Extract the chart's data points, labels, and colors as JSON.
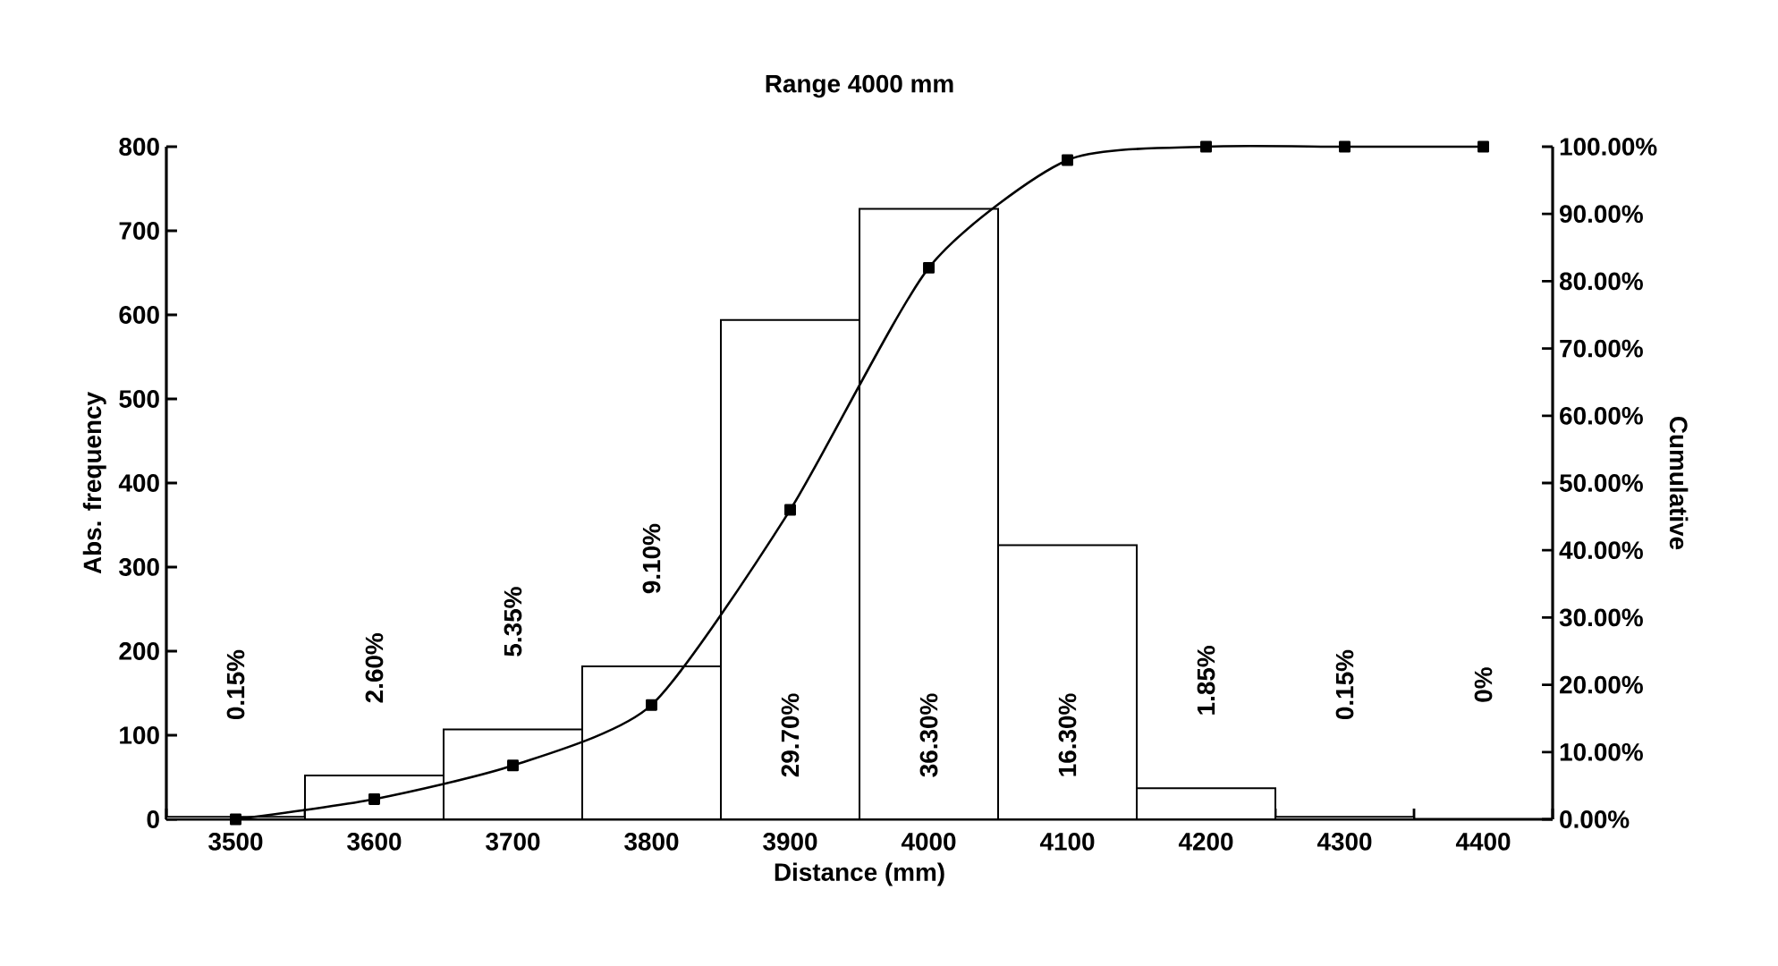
{
  "chart_data": {
    "type": "bar",
    "title": "Range 4000 mm",
    "xlabel": "Distance (mm)",
    "ylabel": "Abs. frequency",
    "y2label": "Cumulative",
    "categories": [
      "3500",
      "3600",
      "3700",
      "3800",
      "3900",
      "4000",
      "4100",
      "4200",
      "4300",
      "4400"
    ],
    "series": [
      {
        "color": "#ffffff",
        "values": [
          3,
          52,
          107,
          182,
          594,
          726,
          326,
          37,
          3,
          0
        ]
      },
      {
        "type": "line",
        "axis": "y2",
        "color": "#000000",
        "values": [
          0,
          3,
          8,
          17,
          46,
          82,
          98,
          100,
          100,
          100
        ]
      }
    ],
    "annotations": [
      "0.15%",
      "2.60%",
      "5.35%",
      "9.10%",
      "29.70%",
      "36.30%",
      "16.30%",
      "1.85%",
      "0.15%",
      "0%"
    ],
    "ylim": [
      0,
      800
    ],
    "yticks": [
      0,
      100,
      200,
      300,
      400,
      500,
      600,
      700,
      800
    ],
    "y2lim": [
      0,
      100
    ],
    "y2ticks": [
      {
        "value": 0,
        "label": "0.00%"
      },
      {
        "value": 10,
        "label": "10.00%"
      },
      {
        "value": 20,
        "label": "20.00%"
      },
      {
        "value": 30,
        "label": "30.00%"
      },
      {
        "value": 40,
        "label": "40.00%"
      },
      {
        "value": 50,
        "label": "50.00%"
      },
      {
        "value": 60,
        "label": "60.00%"
      },
      {
        "value": 70,
        "label": "70.00%"
      },
      {
        "value": 80,
        "label": "80.00%"
      },
      {
        "value": 90,
        "label": "90.00%"
      },
      {
        "value": 100,
        "label": "100.00%"
      }
    ],
    "marker": "square",
    "grid": false
  }
}
